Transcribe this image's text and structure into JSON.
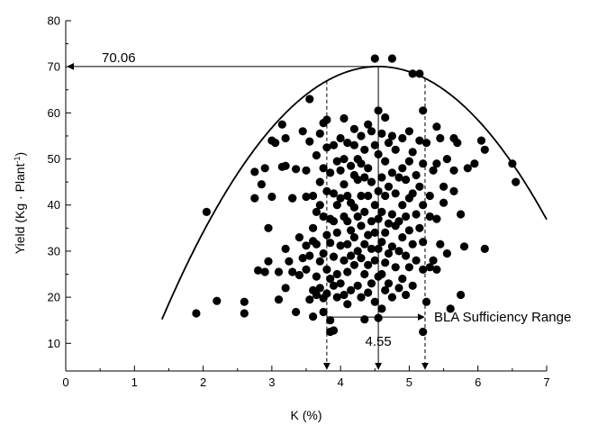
{
  "chart_data": {
    "type": "scatter",
    "title": "",
    "xlabel": "K (%)",
    "ylabel_main": "Yield (Kg · Plant",
    "ylabel_sup": "-1",
    "ylabel_tail": ")",
    "xlim": [
      0,
      7
    ],
    "ylim": [
      4,
      80
    ],
    "xticks": [
      0,
      1,
      2,
      3,
      4,
      5,
      6,
      7
    ],
    "yticks": [
      10,
      20,
      30,
      40,
      50,
      60,
      70,
      80
    ],
    "grid": false,
    "curve": {
      "form": "quadratic",
      "vertex_x": 4.55,
      "vertex_y": 70.06,
      "a": -5.53,
      "x_from": 1.4,
      "x_to": 7.0
    },
    "annotations": {
      "max_yield_label": "70.06",
      "max_yield_value": 70.06,
      "optimum_label": "4.55",
      "optimum_value": 4.55,
      "range_label": "BLA Sufficiency Range",
      "range_low": 3.8,
      "range_high": 5.23
    },
    "points": [
      [
        1.9,
        16.5
      ],
      [
        2.05,
        38.5
      ],
      [
        2.2,
        19.2
      ],
      [
        2.6,
        16.5
      ],
      [
        2.6,
        19.0
      ],
      [
        2.75,
        47.2
      ],
      [
        2.75,
        41.5
      ],
      [
        2.8,
        25.8
      ],
      [
        2.85,
        44.5
      ],
      [
        2.9,
        25.5
      ],
      [
        2.9,
        48.0
      ],
      [
        2.95,
        35.0
      ],
      [
        2.95,
        27.8
      ],
      [
        3.0,
        54.0
      ],
      [
        3.0,
        41.8
      ],
      [
        3.05,
        53.5
      ],
      [
        3.1,
        19.5
      ],
      [
        3.1,
        25.5
      ],
      [
        3.15,
        57.5
      ],
      [
        3.15,
        48.3
      ],
      [
        3.2,
        48.5
      ],
      [
        3.2,
        54.5
      ],
      [
        3.2,
        30.5
      ],
      [
        3.2,
        22.0
      ],
      [
        3.25,
        27.8
      ],
      [
        3.3,
        41.5
      ],
      [
        3.3,
        25.5
      ],
      [
        3.35,
        47.8
      ],
      [
        3.35,
        16.8
      ],
      [
        3.4,
        24.8
      ],
      [
        3.4,
        33.0
      ],
      [
        3.45,
        28.5
      ],
      [
        3.45,
        56.0
      ],
      [
        3.5,
        47.5
      ],
      [
        3.5,
        41.8
      ],
      [
        3.5,
        31.2
      ],
      [
        3.5,
        26.0
      ],
      [
        3.55,
        63.0
      ],
      [
        3.55,
        53.8
      ],
      [
        3.55,
        29.0
      ],
      [
        3.55,
        19.5
      ],
      [
        3.6,
        42.0
      ],
      [
        3.6,
        35.0
      ],
      [
        3.6,
        32.2
      ],
      [
        3.6,
        21.5
      ],
      [
        3.6,
        15.8
      ],
      [
        3.65,
        50.8
      ],
      [
        3.65,
        38.5
      ],
      [
        3.65,
        31.5
      ],
      [
        3.65,
        24.5
      ],
      [
        3.65,
        20.5
      ],
      [
        3.7,
        55.5
      ],
      [
        3.7,
        45.0
      ],
      [
        3.7,
        40.0
      ],
      [
        3.7,
        27.8
      ],
      [
        3.7,
        22.0
      ],
      [
        3.75,
        57.8
      ],
      [
        3.75,
        48.0
      ],
      [
        3.75,
        37.5
      ],
      [
        3.75,
        29.5
      ],
      [
        3.75,
        19.8
      ],
      [
        3.75,
        16.8
      ],
      [
        3.8,
        58.5
      ],
      [
        3.8,
        52.5
      ],
      [
        3.8,
        43.0
      ],
      [
        3.8,
        33.5
      ],
      [
        3.8,
        26.0
      ],
      [
        3.8,
        20.8
      ],
      [
        3.85,
        47.0
      ],
      [
        3.85,
        37.0
      ],
      [
        3.85,
        31.8
      ],
      [
        3.85,
        24.0
      ],
      [
        3.85,
        12.5
      ],
      [
        3.85,
        15.0
      ],
      [
        3.9,
        53.0
      ],
      [
        3.9,
        42.5
      ],
      [
        3.9,
        36.5
      ],
      [
        3.9,
        28.8
      ],
      [
        3.9,
        22.5
      ],
      [
        3.9,
        12.8
      ],
      [
        3.95,
        49.5
      ],
      [
        3.95,
        40.0
      ],
      [
        3.95,
        34.0
      ],
      [
        3.95,
        25.0
      ],
      [
        3.95,
        20.0
      ],
      [
        4.0,
        54.5
      ],
      [
        4.0,
        47.5
      ],
      [
        4.0,
        41.5
      ],
      [
        4.0,
        31.2
      ],
      [
        4.0,
        23.0
      ],
      [
        4.05,
        58.8
      ],
      [
        4.05,
        50.0
      ],
      [
        4.05,
        44.5
      ],
      [
        4.05,
        37.5
      ],
      [
        4.05,
        28.0
      ],
      [
        4.05,
        20.5
      ],
      [
        4.1,
        53.5
      ],
      [
        4.1,
        42.0
      ],
      [
        4.1,
        36.5
      ],
      [
        4.1,
        31.5
      ],
      [
        4.1,
        25.5
      ],
      [
        4.1,
        18.5
      ],
      [
        4.15,
        48.5
      ],
      [
        4.15,
        40.5
      ],
      [
        4.15,
        34.5
      ],
      [
        4.15,
        29.0
      ],
      [
        4.15,
        21.5
      ],
      [
        4.2,
        56.5
      ],
      [
        4.2,
        53.0
      ],
      [
        4.2,
        46.5
      ],
      [
        4.2,
        39.5
      ],
      [
        4.2,
        33.0
      ],
      [
        4.2,
        27.0
      ],
      [
        4.25,
        45.5
      ],
      [
        4.25,
        37.5
      ],
      [
        4.25,
        30.0
      ],
      [
        4.25,
        22.5
      ],
      [
        4.3,
        55.0
      ],
      [
        4.3,
        49.0
      ],
      [
        4.3,
        42.0
      ],
      [
        4.3,
        35.5
      ],
      [
        4.3,
        28.5
      ],
      [
        4.3,
        20.0
      ],
      [
        4.35,
        52.0
      ],
      [
        4.35,
        46.0
      ],
      [
        4.35,
        38.5
      ],
      [
        4.35,
        31.5
      ],
      [
        4.35,
        25.0
      ],
      [
        4.35,
        15.2
      ],
      [
        4.4,
        57.5
      ],
      [
        4.4,
        48.0
      ],
      [
        4.4,
        42.0
      ],
      [
        4.4,
        33.5
      ],
      [
        4.4,
        27.0
      ],
      [
        4.4,
        21.0
      ],
      [
        4.45,
        56.0
      ],
      [
        4.45,
        45.0
      ],
      [
        4.45,
        36.5
      ],
      [
        4.45,
        30.5
      ],
      [
        4.45,
        23.0
      ],
      [
        4.5,
        71.8
      ],
      [
        4.5,
        53.0
      ],
      [
        4.5,
        40.0
      ],
      [
        4.5,
        34.0
      ],
      [
        4.5,
        28.0
      ],
      [
        4.5,
        19.0
      ],
      [
        4.55,
        60.5
      ],
      [
        4.55,
        51.0
      ],
      [
        4.55,
        43.0
      ],
      [
        4.55,
        37.0
      ],
      [
        4.55,
        30.5
      ],
      [
        4.55,
        24.5
      ],
      [
        4.55,
        15.5
      ],
      [
        4.6,
        55.5
      ],
      [
        4.6,
        46.0
      ],
      [
        4.6,
        38.5
      ],
      [
        4.6,
        32.0
      ],
      [
        4.6,
        25.0
      ],
      [
        4.6,
        17.5
      ],
      [
        4.65,
        59.0
      ],
      [
        4.65,
        49.5
      ],
      [
        4.65,
        42.0
      ],
      [
        4.65,
        34.0
      ],
      [
        4.65,
        27.5
      ],
      [
        4.65,
        21.5
      ],
      [
        4.7,
        53.5
      ],
      [
        4.7,
        44.0
      ],
      [
        4.7,
        36.0
      ],
      [
        4.7,
        29.5
      ],
      [
        4.7,
        23.0
      ],
      [
        4.75,
        71.8
      ],
      [
        4.75,
        55.0
      ],
      [
        4.75,
        47.0
      ],
      [
        4.75,
        38.0
      ],
      [
        4.75,
        31.0
      ],
      [
        4.75,
        20.0
      ],
      [
        4.8,
        52.0
      ],
      [
        4.8,
        42.5
      ],
      [
        4.8,
        35.5
      ],
      [
        4.8,
        26.5
      ],
      [
        4.85,
        46.0
      ],
      [
        4.85,
        36.5
      ],
      [
        4.85,
        30.0
      ],
      [
        4.85,
        22.0
      ],
      [
        4.9,
        54.5
      ],
      [
        4.9,
        48.0
      ],
      [
        4.9,
        40.0
      ],
      [
        4.9,
        33.0
      ],
      [
        4.9,
        24.0
      ],
      [
        4.95,
        45.5
      ],
      [
        4.95,
        37.5
      ],
      [
        4.95,
        29.0
      ],
      [
        4.95,
        20.5
      ],
      [
        5.0,
        56.0
      ],
      [
        5.0,
        49.5
      ],
      [
        5.0,
        41.5
      ],
      [
        5.0,
        34.5
      ],
      [
        5.0,
        26.5
      ],
      [
        5.05,
        68.5
      ],
      [
        5.05,
        51.5
      ],
      [
        5.05,
        42.5
      ],
      [
        5.05,
        31.5
      ],
      [
        5.05,
        22.5
      ],
      [
        5.1,
        46.5
      ],
      [
        5.1,
        38.0
      ],
      [
        5.1,
        28.0
      ],
      [
        5.15,
        68.5
      ],
      [
        5.15,
        54.0
      ],
      [
        5.15,
        44.0
      ],
      [
        5.15,
        35.0
      ],
      [
        5.2,
        60.5
      ],
      [
        5.2,
        49.0
      ],
      [
        5.2,
        40.0
      ],
      [
        5.2,
        32.0
      ],
      [
        5.2,
        26.0
      ],
      [
        5.2,
        12.5
      ],
      [
        5.25,
        53.5
      ],
      [
        5.25,
        19.0
      ],
      [
        5.3,
        42.0
      ],
      [
        5.3,
        37.5
      ],
      [
        5.35,
        47.5
      ],
      [
        5.35,
        28.0
      ],
      [
        5.4,
        57.0
      ],
      [
        5.4,
        49.0
      ],
      [
        5.4,
        37.0
      ],
      [
        5.4,
        26.0
      ],
      [
        5.45,
        54.5
      ],
      [
        5.45,
        31.5
      ],
      [
        5.5,
        44.0
      ],
      [
        5.5,
        40.5
      ],
      [
        5.55,
        50.0
      ],
      [
        5.55,
        29.5
      ],
      [
        5.6,
        17.5
      ],
      [
        5.65,
        54.5
      ],
      [
        5.65,
        47.5
      ],
      [
        5.65,
        43.0
      ],
      [
        5.7,
        53.5
      ],
      [
        5.75,
        38.0
      ],
      [
        5.75,
        20.5
      ],
      [
        5.8,
        31.0
      ],
      [
        5.85,
        48.0
      ],
      [
        5.95,
        49.0
      ],
      [
        6.05,
        54.0
      ],
      [
        6.1,
        52.0
      ],
      [
        6.1,
        30.5
      ],
      [
        6.5,
        49.0
      ],
      [
        6.55,
        45.0
      ],
      [
        5.3,
        26.5
      ],
      [
        3.3,
        41.5
      ],
      [
        4.25,
        50.0
      ]
    ]
  }
}
